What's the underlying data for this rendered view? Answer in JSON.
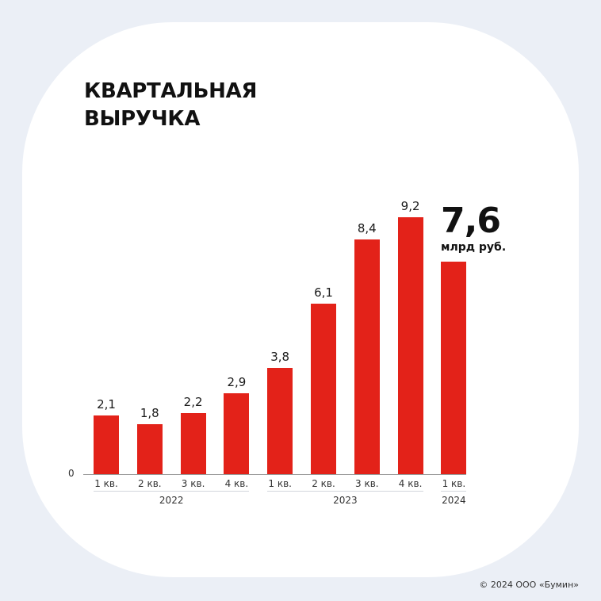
{
  "title": {
    "line1": "КВАРТАЛЬНАЯ",
    "line2": "ВЫРУЧКА"
  },
  "highlight": {
    "value": "7,6",
    "unit": "млрд руб."
  },
  "axis": {
    "zero_label": "0"
  },
  "bars": [
    {
      "quarter": "1 кв.",
      "year": "2022",
      "value": 2.1,
      "label": "2,1"
    },
    {
      "quarter": "2 кв.",
      "year": "2022",
      "value": 1.8,
      "label": "1,8"
    },
    {
      "quarter": "3 кв.",
      "year": "2022",
      "value": 2.2,
      "label": "2,2"
    },
    {
      "quarter": "4 кв.",
      "year": "2022",
      "value": 2.9,
      "label": "2,9"
    },
    {
      "quarter": "1 кв.",
      "year": "2023",
      "value": 3.8,
      "label": "3,8"
    },
    {
      "quarter": "2 кв.",
      "year": "2023",
      "value": 6.1,
      "label": "6,1"
    },
    {
      "quarter": "3 кв.",
      "year": "2023",
      "value": 8.4,
      "label": "8,4"
    },
    {
      "quarter": "4 кв.",
      "year": "2023",
      "value": 9.2,
      "label": "9,2"
    },
    {
      "quarter": "1 кв.",
      "year": "2024",
      "value": 7.6,
      "label": ""
    }
  ],
  "years": [
    {
      "label": "2022",
      "start": 0,
      "end": 3
    },
    {
      "label": "2023",
      "start": 4,
      "end": 7
    },
    {
      "label": "2024",
      "start": 8,
      "end": 8
    }
  ],
  "footer": {
    "copyright": "© 2024 ООО «Бумин»"
  },
  "colors": {
    "bar": "#E32219",
    "background": "#EBEFF6",
    "card": "#FFFFFF",
    "text": "#111111"
  },
  "chart_data": {
    "type": "bar",
    "title": "Квартальная выручка",
    "categories": [
      "1 кв. 2022",
      "2 кв. 2022",
      "3 кв. 2022",
      "4 кв. 2022",
      "1 кв. 2023",
      "2 кв. 2023",
      "3 кв. 2023",
      "4 кв. 2023",
      "1 кв. 2024"
    ],
    "values": [
      2.1,
      1.8,
      2.2,
      2.9,
      3.8,
      6.1,
      8.4,
      9.2,
      7.6
    ],
    "xlabel": "",
    "ylabel": "млрд руб.",
    "ylim": [
      0,
      9.2
    ],
    "x_group_labels": [
      "2022",
      "2023",
      "2024"
    ],
    "annotations": [
      {
        "target": "1 кв. 2024",
        "text": "7,6 млрд руб."
      }
    ],
    "grid": false,
    "legend": null
  }
}
